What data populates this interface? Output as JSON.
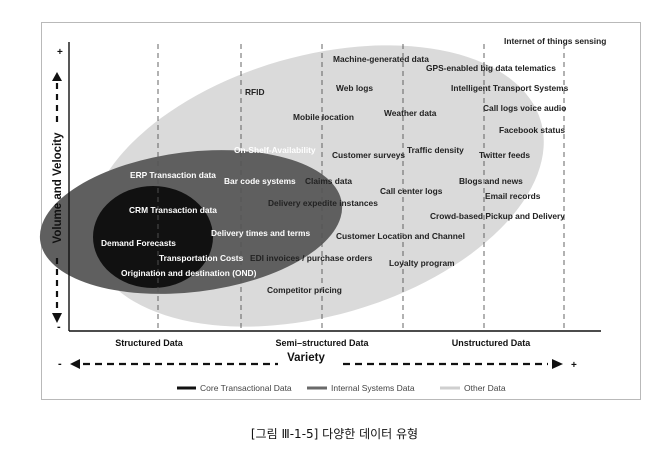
{
  "axes": {
    "y_label": "Volume and Velocity",
    "y_plus": "+",
    "y_minus": "-",
    "x_label": "Variety",
    "x_minus": "-",
    "x_plus": "+",
    "x_categories": [
      "Structured Data",
      "Semi–structured Data",
      "Unstructured Data"
    ]
  },
  "regions": {
    "other": {
      "name": "Other Data",
      "color": "#dadada"
    },
    "internal": {
      "name": "Internal  Systems Data",
      "color": "#5f5f5f"
    },
    "core": {
      "name": "Core Transactional Data",
      "color": "#111111"
    }
  },
  "legend": [
    {
      "label": "Core Transactional Data",
      "color": "#111111"
    },
    {
      "label": "Internal  Systems Data",
      "color": "#6a6a6a"
    },
    {
      "label": "Other Data",
      "color": "#cfcfcf"
    }
  ],
  "items": {
    "internet_of_things": "Internet of things sensing",
    "machine_generated": "Machine-generated data",
    "gps_telematics": "GPS-enabled big data telematics",
    "rfid": "RFID",
    "web_logs": "Web logs",
    "intelligent_transport": "Intelligent Transport Systems",
    "mobile_location": "Mobile location",
    "weather_data": "Weather data",
    "call_logs": "Call logs voice audio",
    "facebook_status": "Facebook status",
    "on_shelf": "On-Shelf-Availability",
    "customer_surveys": "Customer surveys",
    "traffic_density": "Traffic density",
    "twitter_feeds": "Twitter feeds",
    "erp": "ERP Transaction data",
    "bar_code": "Bar code systems",
    "claims_data": "Claims data",
    "blogs_news": "Blogs and news",
    "call_center": "Call center logs",
    "email_records": "Email records",
    "delivery_expedite": "Delivery expedite instances",
    "crm": "CRM Transaction data",
    "crowd_pickup": "Crowd-based Pickup and Delivery",
    "delivery_times": "Delivery times and terms",
    "customer_location": "Customer Location and Channel",
    "demand_forecasts": "Demand Forecasts",
    "transportation_costs": "Transportation Costs",
    "edi_invoices": "EDI invoices / purchase orders",
    "loyalty_program": "Loyalty program",
    "origination_destination": "Origination and destination (OND)",
    "competitor_pricing": "Competitor pricing"
  },
  "caption": "[그림 Ⅲ-1-5] 다양한 데이터 유형"
}
